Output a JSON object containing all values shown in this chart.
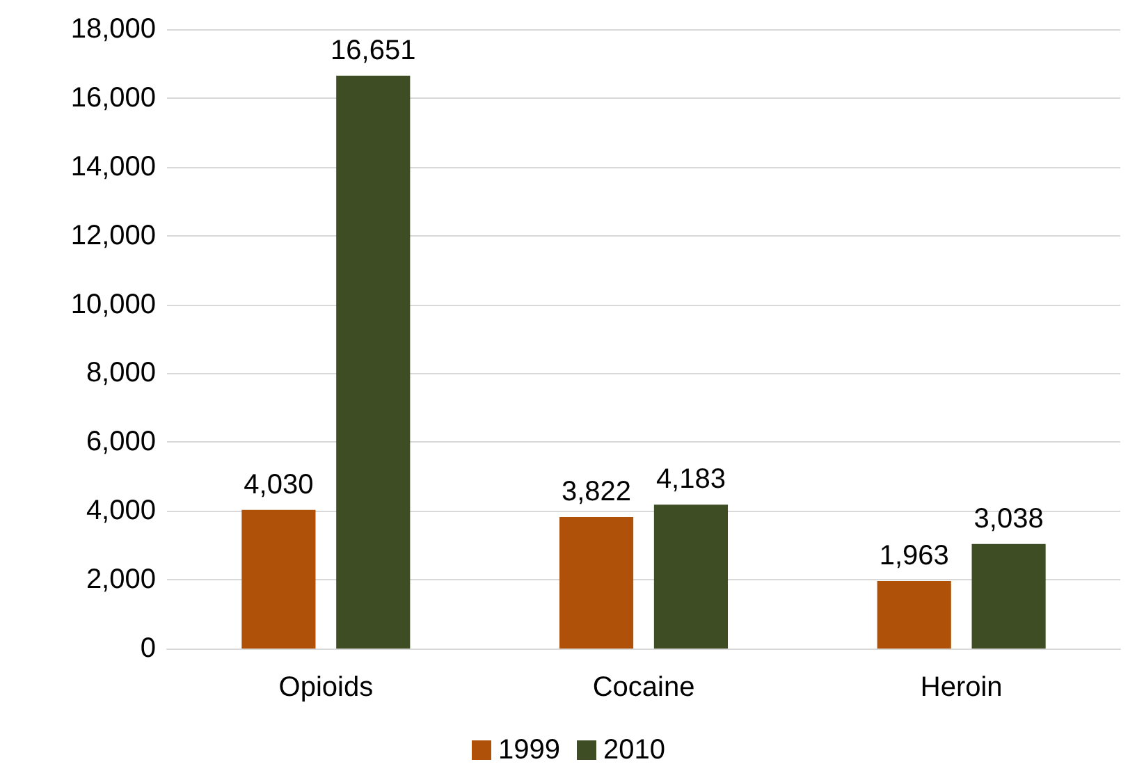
{
  "chart_data": {
    "type": "bar",
    "categories": [
      "Opioids",
      "Cocaine",
      "Heroin"
    ],
    "series": [
      {
        "name": "1999",
        "color": "#af5109",
        "values": [
          4030,
          3822,
          1963
        ],
        "value_labels": [
          "4,030",
          "3,822",
          "1,963"
        ]
      },
      {
        "name": "2010",
        "color": "#3e4d23",
        "values": [
          16651,
          4183,
          3038
        ],
        "value_labels": [
          "16,651",
          "4,183",
          "3,038"
        ]
      }
    ],
    "ylim": [
      0,
      18000
    ],
    "yticks": [
      0,
      {
        "value": 2000,
        "label": "2,000"
      },
      {
        "value": 4000,
        "label": "4,000"
      },
      {
        "value": 6000,
        "label": "6,000"
      },
      {
        "value": 8000,
        "label": "8,000"
      },
      {
        "value": 10000,
        "label": "10,000"
      },
      {
        "value": 12000,
        "label": "12,000"
      },
      {
        "value": 14000,
        "label": "14,000"
      },
      {
        "value": 16000,
        "label": "16,000"
      },
      {
        "value": 18000,
        "label": "18,000"
      }
    ],
    "grid": "y",
    "legend": "bottom"
  }
}
